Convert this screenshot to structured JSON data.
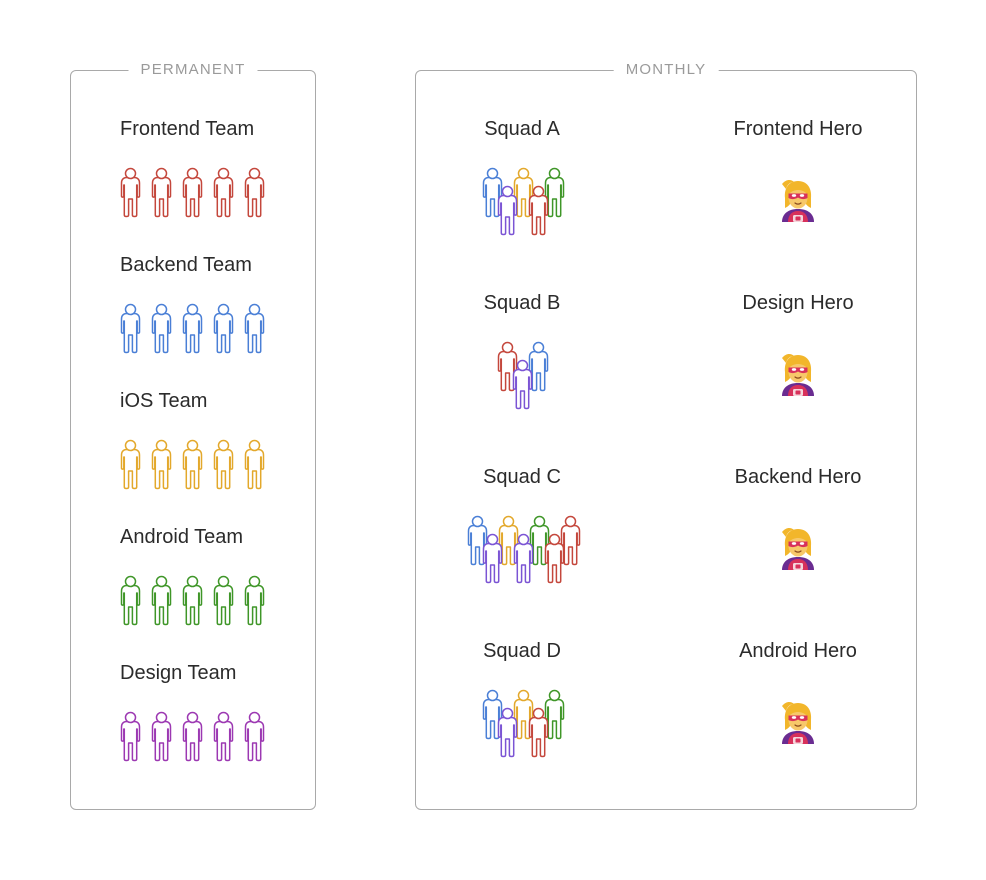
{
  "permanent": {
    "title": "PERMANENT",
    "teams": [
      {
        "name": "Frontend Team",
        "color": "#c4473c",
        "count": 5
      },
      {
        "name": "Backend Team",
        "color": "#4a7fd6",
        "count": 5
      },
      {
        "name": "iOS Team",
        "color": "#e3a82b",
        "count": 5
      },
      {
        "name": "Android Team",
        "color": "#3f9628",
        "count": 5
      },
      {
        "name": "Design Team",
        "color": "#9c38b2",
        "count": 5
      }
    ]
  },
  "monthly": {
    "title": "MONTHLY",
    "squads": [
      {
        "name": "Squad A"
      },
      {
        "name": "Squad B"
      },
      {
        "name": "Squad C"
      },
      {
        "name": "Squad D"
      }
    ],
    "heroes": [
      {
        "name": "Frontend Hero",
        "icon": "superhero-emoji-icon"
      },
      {
        "name": "Design Hero",
        "icon": "superhero-emoji-icon"
      },
      {
        "name": "Backend Hero",
        "icon": "superhero-emoji-icon"
      },
      {
        "name": "Android Hero",
        "icon": "superhero-emoji-icon"
      }
    ]
  },
  "colors": {
    "frontend": "#c4473c",
    "backend": "#4a7fd6",
    "ios": "#e3a82b",
    "android": "#3f9628",
    "design": "#9c38b2",
    "squad_purple": "#7b54d4",
    "border": "#a9a9a9",
    "legend_text": "#9a9a9a"
  }
}
